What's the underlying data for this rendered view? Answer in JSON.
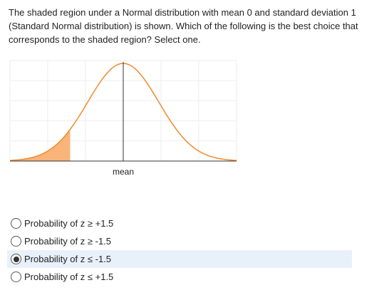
{
  "question": {
    "text": "The shaded region under a Normal distribution with mean 0 and standard deviation 1 (Standard Normal distribution) is shown. Which of the following is the best choice that corresponds to the shaded region? Select one."
  },
  "chart_data": {
    "type": "area",
    "distribution": "normal",
    "mean": 0,
    "sd": 1,
    "xlim": [
      -3.2,
      3.2
    ],
    "shaded_region": {
      "from": -3.2,
      "to": -1.5
    },
    "center_label": "mean",
    "curve_color": "#f08a2c",
    "shade_color": "#f9b47a",
    "grid": true
  },
  "options": [
    {
      "label": "Probability of z ≥ +1.5",
      "selected": false
    },
    {
      "label": "Probability of z ≥ -1.5",
      "selected": false
    },
    {
      "label": "Probability of z ≤ -1.5",
      "selected": true
    },
    {
      "label": "Probability of z ≤ +1.5",
      "selected": false
    }
  ],
  "colors": {
    "selected_background": "#e8f1fa",
    "text": "#222222"
  }
}
